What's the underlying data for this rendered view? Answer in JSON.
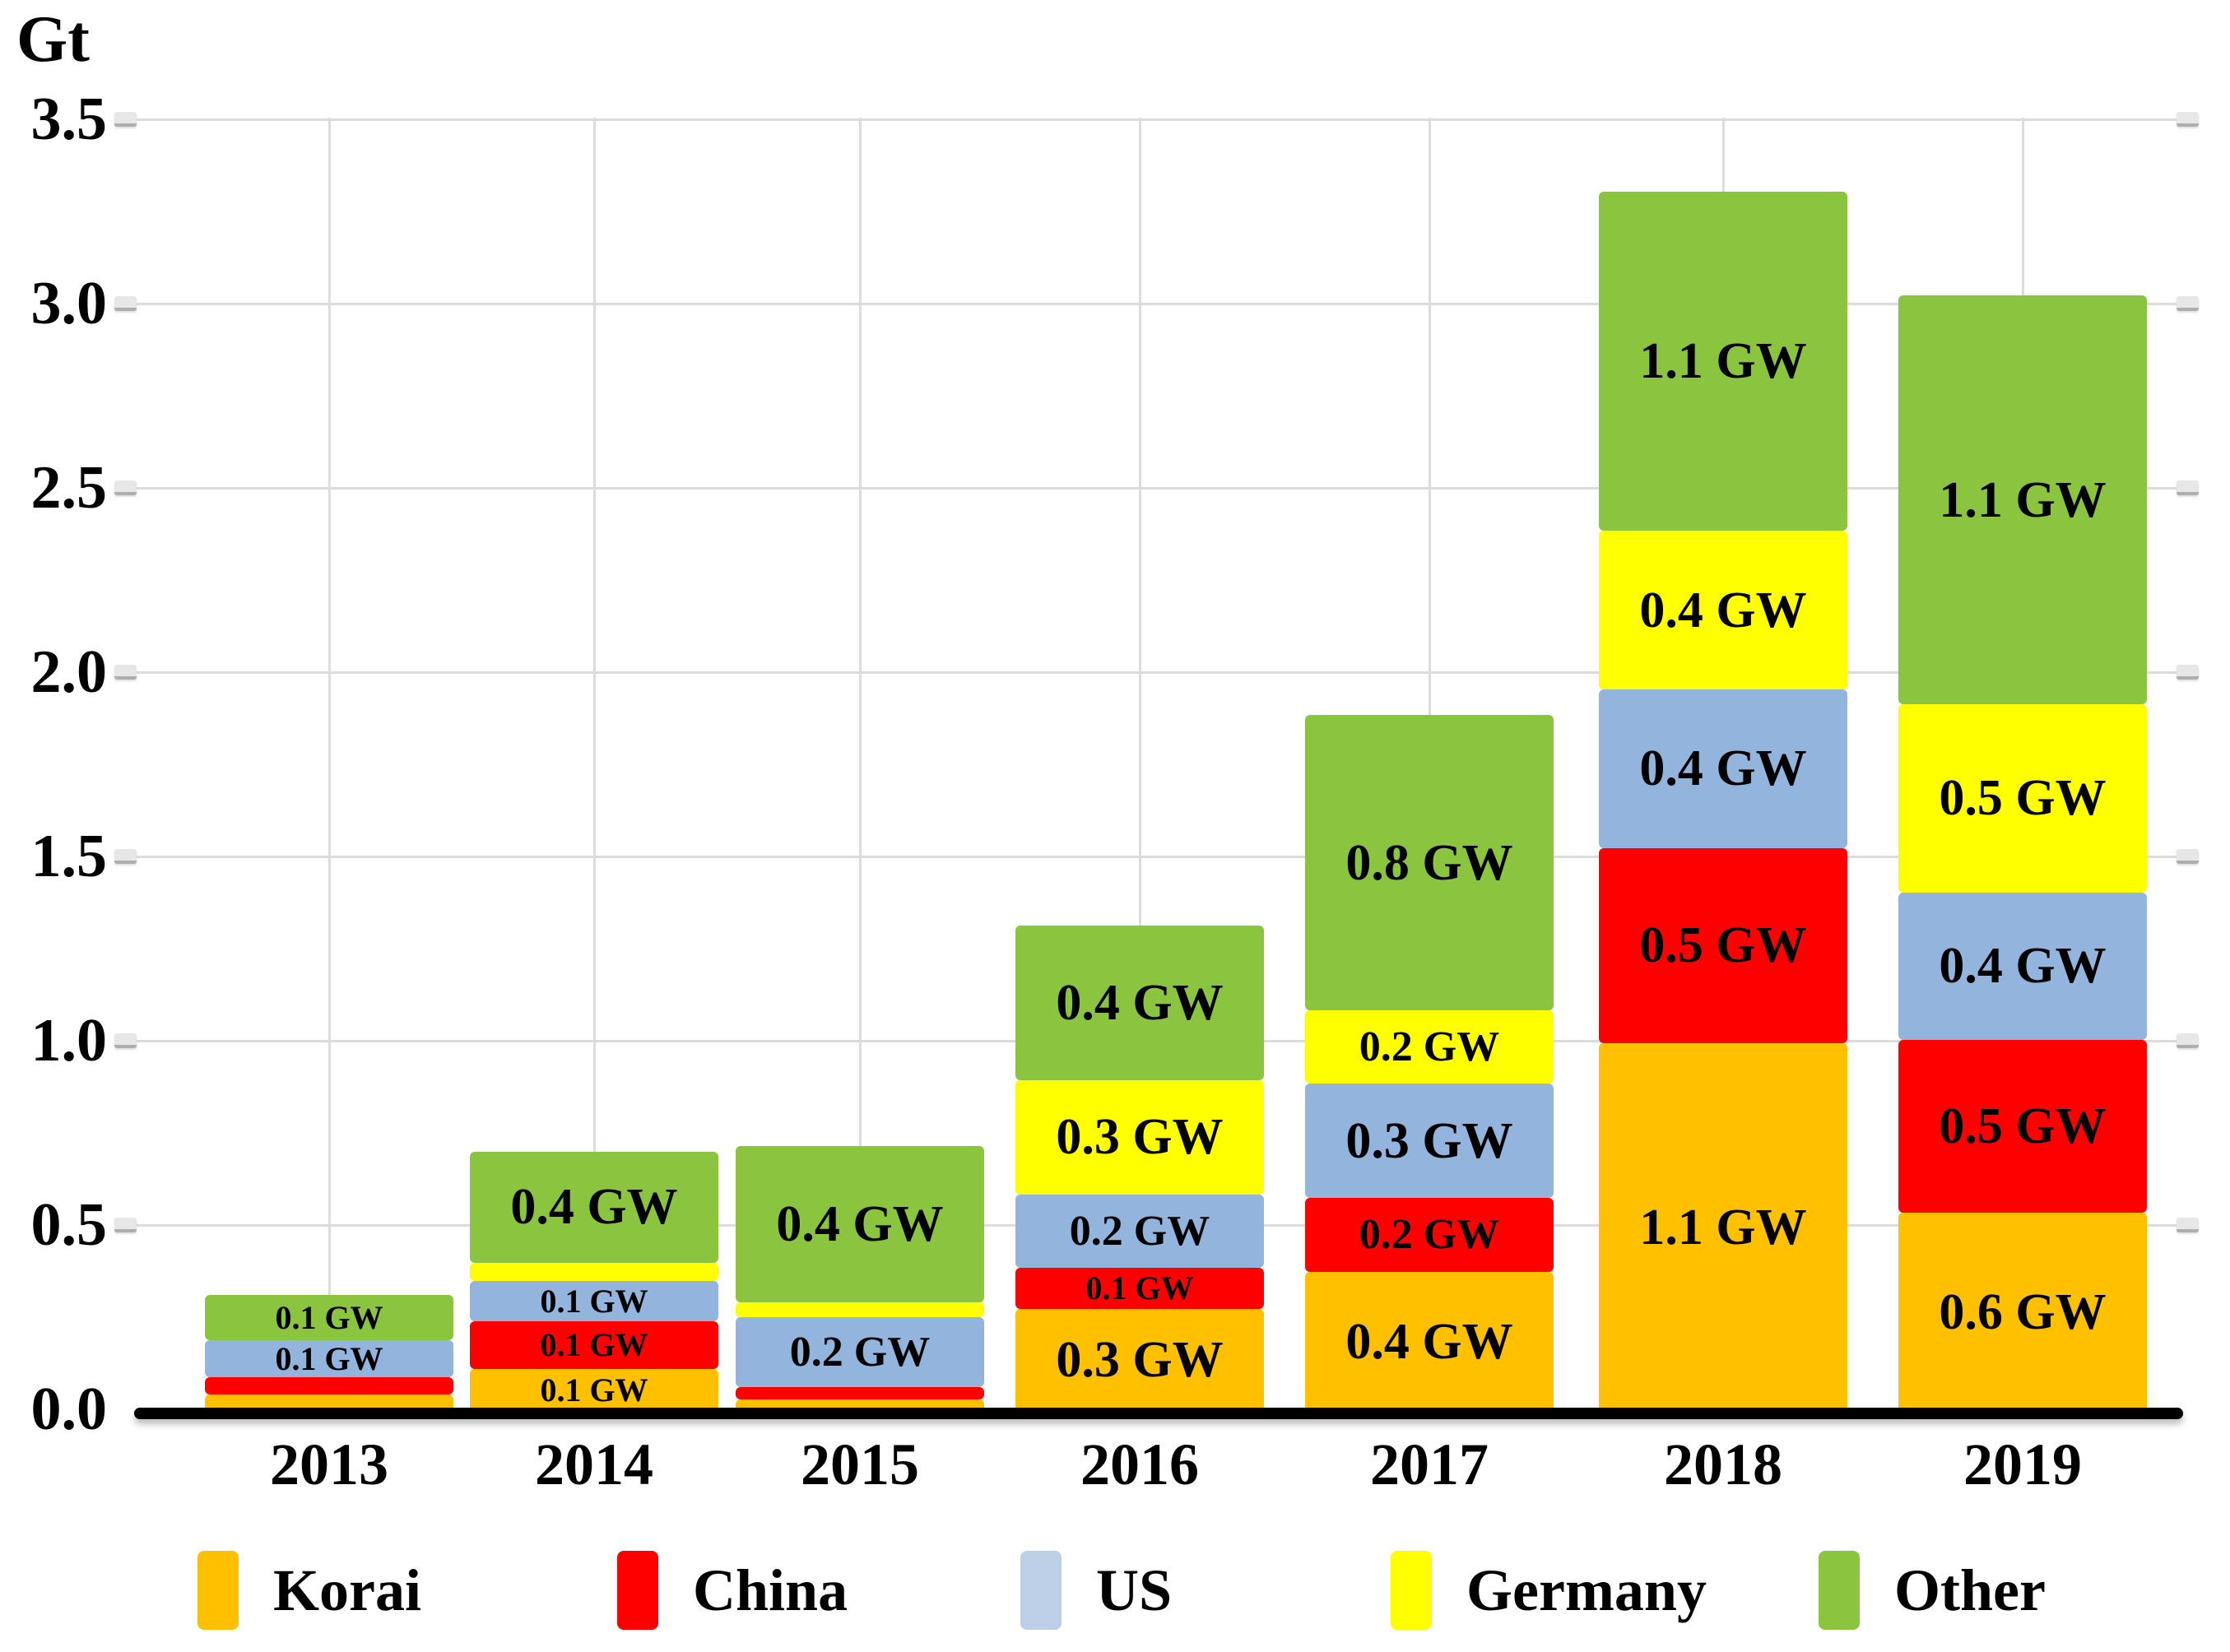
{
  "y_axis": {
    "unit": "Gt",
    "tick_labels": [
      "3.5",
      "3.0",
      "2.5",
      "2.0",
      "1.5",
      "1.0",
      "0.5",
      "0.0"
    ],
    "tick_values": [
      3.5,
      3.0,
      2.5,
      2.0,
      1.5,
      1.0,
      0.5,
      0.0
    ],
    "max": 3.5,
    "min": 0.0
  },
  "chart_data": {
    "type": "bar",
    "stacked": true,
    "title": "",
    "xlabel": "",
    "ylabel": "Gt",
    "ylim": [
      0,
      3.5
    ],
    "grid": true,
    "legend_position": "bottom",
    "categories": [
      "2013",
      "2014",
      "2015",
      "2016",
      "2017",
      "2018",
      "2019"
    ],
    "series": [
      {
        "name": "Korai",
        "color": "#FFC000",
        "values_gw": [
          null,
          0.1,
          null,
          0.3,
          0.4,
          1.1,
          0.6
        ],
        "heights_gt": [
          0.047,
          0.115,
          0.033,
          0.28,
          0.38,
          1.0,
          0.54
        ],
        "labels": [
          "",
          "0.1 GW",
          "",
          "0.3 GW",
          "0.4 GW",
          "1.1 GW",
          "0.6 GW"
        ]
      },
      {
        "name": "China",
        "color": "#FF0000",
        "values_gw": [
          null,
          0.1,
          null,
          0.1,
          0.2,
          0.5,
          0.5
        ],
        "heights_gt": [
          0.047,
          0.13,
          0.033,
          0.11,
          0.2,
          0.53,
          0.47
        ],
        "labels": [
          "",
          "0.1 GW",
          "",
          "0.1 GW",
          "0.2 GW",
          "0.5 GW",
          "0.5 GW"
        ]
      },
      {
        "name": "US",
        "color": "#93B5DD",
        "values_gw": [
          0.1,
          0.1,
          0.2,
          0.2,
          0.3,
          0.4,
          0.4
        ],
        "heights_gt": [
          0.1,
          0.11,
          0.19,
          0.2,
          0.31,
          0.43,
          0.4
        ],
        "labels": [
          "0.1 GW",
          "0.1 GW",
          "0.2 GW",
          "0.2 GW",
          "0.3 GW",
          "0.4 GW",
          "0.4 GW"
        ]
      },
      {
        "name": "Germany",
        "color": "#FFFF00",
        "values_gw": [
          null,
          null,
          null,
          0.3,
          0.2,
          0.4,
          0.5
        ],
        "heights_gt": [
          0,
          0.05,
          0.04,
          0.31,
          0.2,
          0.43,
          0.51
        ],
        "labels": [
          "",
          "",
          "",
          "0.3 GW",
          "0.2 GW",
          "0.4 GW",
          "0.5 GW"
        ]
      },
      {
        "name": "Other",
        "color": "#8BC53F",
        "values_gw": [
          0.1,
          0.4,
          0.4,
          0.4,
          0.8,
          1.1,
          1.1
        ],
        "heights_gt": [
          0.124,
          0.3,
          0.425,
          0.42,
          0.8,
          0.92,
          1.11
        ],
        "labels": [
          "0.1 GW",
          "0.4 GW",
          "0.4 GW",
          "0.4 GW",
          "0.8 GW",
          "1.1 GW",
          "1.1 GW"
        ]
      }
    ]
  },
  "legend": {
    "items": [
      {
        "label": "Korai",
        "color": "#FFC000"
      },
      {
        "label": "China",
        "color": "#FF0000"
      },
      {
        "label": "US",
        "color": "#BCCFE6"
      },
      {
        "label": "Germany",
        "color": "#FFFF00"
      },
      {
        "label": "Other",
        "color": "#8BC53F"
      }
    ]
  },
  "colors": {
    "gridline": "#DCDCDC",
    "axis": "#000000",
    "label_text": "#000000",
    "background": "#FFFFFF"
  }
}
